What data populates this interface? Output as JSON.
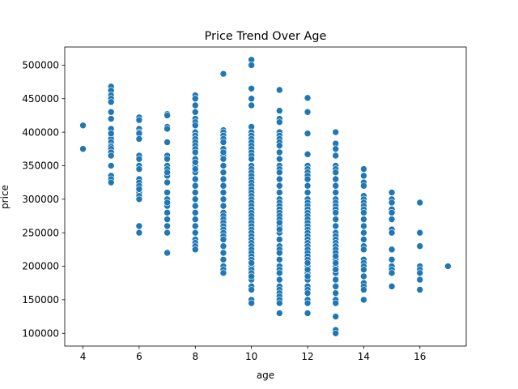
{
  "chart_data": {
    "type": "scatter",
    "title": "Price Trend Over Age",
    "xlabel": "age",
    "ylabel": "price",
    "xlim": [
      3.35,
      17.65
    ],
    "ylim": [
      81000,
      527000
    ],
    "xticks": [
      4,
      6,
      8,
      10,
      12,
      14,
      16
    ],
    "yticks": [
      100000,
      150000,
      200000,
      250000,
      300000,
      350000,
      400000,
      450000,
      500000
    ],
    "grid": false,
    "legend": "none",
    "color": "#1f77b4",
    "series": [
      {
        "x": [
          4,
          4,
          5,
          5,
          5,
          5,
          5,
          5,
          5,
          5,
          5,
          5,
          5,
          5,
          5,
          5,
          5,
          5,
          5,
          5,
          5,
          5,
          5,
          5,
          6,
          6,
          6,
          6,
          6,
          6,
          6,
          6,
          6,
          6,
          6,
          6,
          6,
          6,
          6,
          6,
          6,
          6,
          6,
          7,
          7,
          7,
          7,
          7,
          7,
          7,
          7,
          7,
          7,
          7,
          7,
          7,
          7,
          7,
          7,
          7,
          7,
          7,
          7,
          7,
          8,
          8,
          8,
          8,
          8,
          8,
          8,
          8,
          8,
          8,
          8,
          8,
          8,
          8,
          8,
          8,
          8,
          8,
          8,
          8,
          8,
          8,
          8,
          8,
          8,
          8,
          8,
          8,
          8,
          8,
          8,
          8,
          9,
          9,
          9,
          9,
          9,
          9,
          9,
          9,
          9,
          9,
          9,
          9,
          9,
          9,
          9,
          9,
          9,
          9,
          9,
          9,
          9,
          9,
          9,
          9,
          9,
          9,
          9,
          9,
          9,
          9,
          9,
          9,
          10,
          10,
          10,
          10,
          10,
          10,
          10,
          10,
          10,
          10,
          10,
          10,
          10,
          10,
          10,
          10,
          10,
          10,
          10,
          10,
          10,
          10,
          10,
          10,
          10,
          10,
          10,
          10,
          10,
          10,
          10,
          10,
          10,
          10,
          10,
          10,
          10,
          10,
          10,
          10,
          10,
          10,
          10,
          10,
          10,
          10,
          10,
          10,
          10,
          10,
          10,
          10,
          10,
          10,
          11,
          11,
          11,
          11,
          11,
          11,
          11,
          11,
          11,
          11,
          11,
          11,
          11,
          11,
          11,
          11,
          11,
          11,
          11,
          11,
          11,
          11,
          11,
          11,
          11,
          11,
          11,
          11,
          11,
          11,
          11,
          11,
          11,
          11,
          11,
          11,
          11,
          11,
          11,
          11,
          11,
          11,
          11,
          11,
          12,
          12,
          12,
          12,
          12,
          12,
          12,
          12,
          12,
          12,
          12,
          12,
          12,
          12,
          12,
          12,
          12,
          12,
          12,
          12,
          12,
          12,
          12,
          12,
          12,
          12,
          12,
          12,
          12,
          12,
          12,
          12,
          12,
          12,
          12,
          12,
          12,
          12,
          12,
          12,
          12,
          12,
          13,
          13,
          13,
          13,
          13,
          13,
          13,
          13,
          13,
          13,
          13,
          13,
          13,
          13,
          13,
          13,
          13,
          13,
          13,
          13,
          13,
          13,
          13,
          13,
          13,
          13,
          13,
          13,
          13,
          13,
          13,
          13,
          13,
          13,
          13,
          13,
          13,
          13,
          14,
          14,
          14,
          14,
          14,
          14,
          14,
          14,
          14,
          14,
          14,
          14,
          14,
          14,
          14,
          14,
          14,
          14,
          14,
          14,
          14,
          14,
          14,
          14,
          14,
          15,
          15,
          15,
          15,
          15,
          15,
          15,
          15,
          15,
          15,
          15,
          15,
          15,
          15,
          16,
          16,
          16,
          16,
          16,
          16,
          16,
          16,
          17
        ],
        "y": [
          410000,
          375000,
          468000,
          462000,
          455000,
          450000,
          445000,
          430000,
          420000,
          400000,
          395000,
          390000,
          385000,
          380000,
          378000,
          375000,
          370000,
          365000,
          350000,
          335000,
          330000,
          325000,
          405000,
          398000,
          422000,
          418000,
          405000,
          400000,
          398000,
          390000,
          365000,
          360000,
          350000,
          345000,
          330000,
          325000,
          320000,
          310000,
          305000,
          300000,
          260000,
          250000,
          315000,
          427000,
          425000,
          408000,
          405000,
          385000,
          365000,
          360000,
          350000,
          345000,
          335000,
          325000,
          310000,
          300000,
          290000,
          280000,
          270000,
          260000,
          250000,
          220000,
          295000,
          340000,
          455000,
          450000,
          440000,
          430000,
          420000,
          415000,
          410000,
          400000,
          395000,
          390000,
          385000,
          380000,
          375000,
          370000,
          360000,
          350000,
          340000,
          330000,
          320000,
          310000,
          300000,
          290000,
          280000,
          270000,
          260000,
          250000,
          240000,
          235000,
          230000,
          225000,
          345000,
          355000,
          487000,
          403000,
          400000,
          395000,
          390000,
          385000,
          375000,
          365000,
          350000,
          340000,
          330000,
          320000,
          310000,
          300000,
          290000,
          280000,
          275000,
          270000,
          265000,
          260000,
          255000,
          250000,
          245000,
          240000,
          230000,
          220000,
          210000,
          200000,
          195000,
          190000,
          360000,
          370000,
          508000,
          500000,
          465000,
          450000,
          440000,
          408000,
          400000,
          395000,
          390000,
          385000,
          380000,
          375000,
          370000,
          365000,
          360000,
          350000,
          345000,
          340000,
          335000,
          330000,
          325000,
          320000,
          315000,
          310000,
          305000,
          300000,
          295000,
          290000,
          285000,
          280000,
          275000,
          270000,
          265000,
          260000,
          255000,
          250000,
          245000,
          240000,
          235000,
          230000,
          225000,
          220000,
          215000,
          210000,
          200000,
          195000,
          190000,
          180000,
          170000,
          165000,
          150000,
          145000,
          185000,
          205000,
          463000,
          432000,
          420000,
          415000,
          400000,
          395000,
          390000,
          385000,
          380000,
          370000,
          360000,
          350000,
          345000,
          340000,
          330000,
          320000,
          310000,
          300000,
          295000,
          290000,
          285000,
          280000,
          275000,
          270000,
          260000,
          250000,
          240000,
          230000,
          225000,
          220000,
          210000,
          200000,
          195000,
          190000,
          180000,
          170000,
          165000,
          160000,
          155000,
          150000,
          145000,
          130000,
          255000,
          265000,
          451000,
          430000,
          398000,
          367000,
          350000,
          345000,
          340000,
          335000,
          330000,
          320000,
          310000,
          300000,
          295000,
          290000,
          285000,
          280000,
          275000,
          270000,
          265000,
          260000,
          255000,
          250000,
          245000,
          240000,
          235000,
          230000,
          225000,
          220000,
          215000,
          210000,
          200000,
          190000,
          180000,
          170000,
          165000,
          160000,
          150000,
          145000,
          130000,
          205000,
          195000,
          185000,
          400000,
          383000,
          375000,
          365000,
          350000,
          345000,
          340000,
          330000,
          320000,
          310000,
          300000,
          295000,
          290000,
          285000,
          280000,
          270000,
          260000,
          250000,
          245000,
          240000,
          235000,
          230000,
          225000,
          220000,
          210000,
          200000,
          190000,
          180000,
          170000,
          160000,
          150000,
          145000,
          125000,
          105000,
          100000,
          215000,
          205000,
          195000,
          345000,
          335000,
          325000,
          320000,
          305000,
          300000,
          295000,
          290000,
          285000,
          280000,
          270000,
          260000,
          250000,
          240000,
          230000,
          225000,
          210000,
          205000,
          200000,
          195000,
          185000,
          175000,
          170000,
          165000,
          150000,
          310000,
          300000,
          295000,
          285000,
          270000,
          255000,
          250000,
          225000,
          210000,
          200000,
          195000,
          190000,
          170000,
          280000,
          295000,
          250000,
          230000,
          200000,
          195000,
          190000,
          180000,
          165000,
          200000
        ]
      }
    ]
  }
}
